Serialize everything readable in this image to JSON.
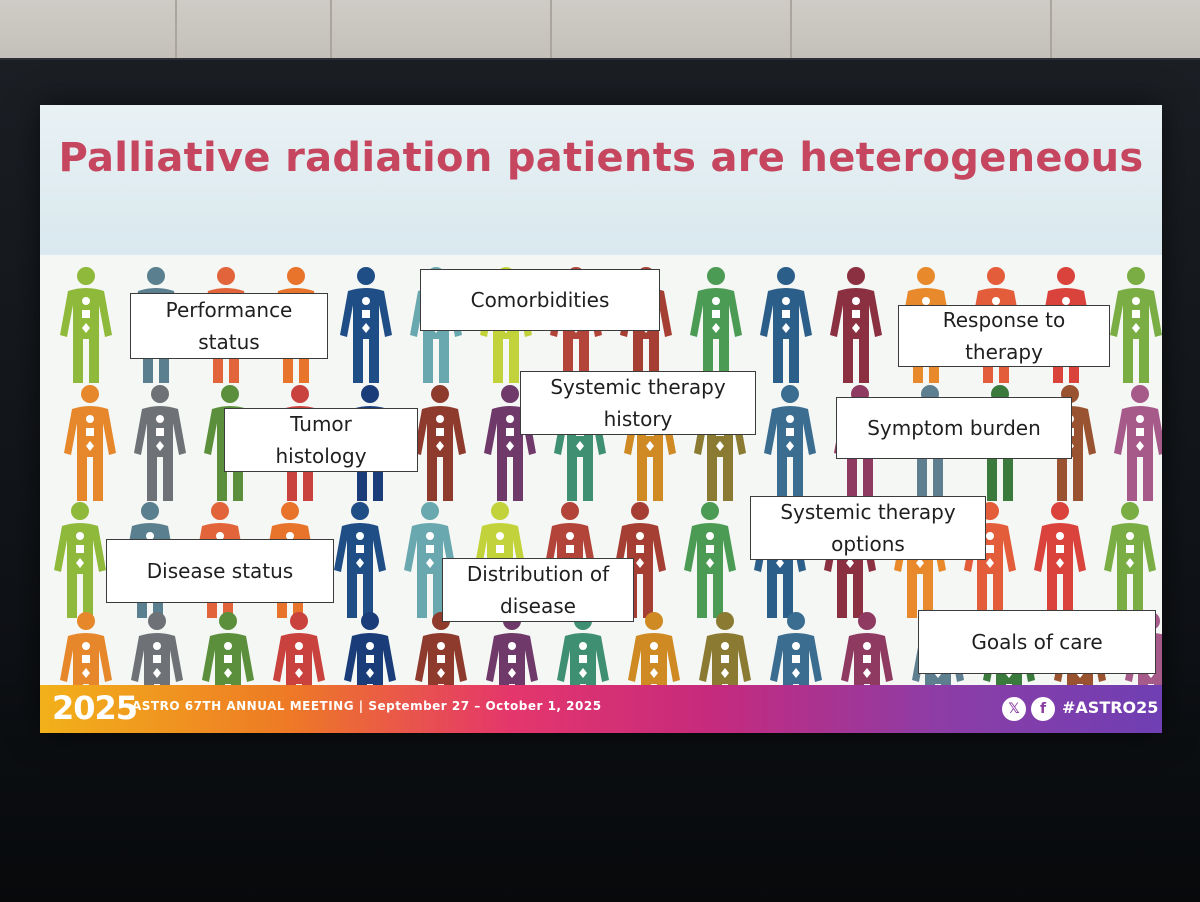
{
  "slide": {
    "title": "Palliative radiation patients are heterogeneous"
  },
  "labels": [
    "Performance\nstatus",
    "Comorbidities",
    "Response to\ntherapy",
    "Systemic therapy\nhistory",
    "Tumor\nhistology",
    "Symptom burden",
    "Systemic therapy\noptions",
    "Disease status",
    "Distribution of\ndisease",
    "Goals of care"
  ],
  "banner": {
    "logo": "2025",
    "meeting": "ASTRO 67TH ANNUAL MEETING  |  September 27 – October 1, 2025",
    "x_icon": "𝕏",
    "facebook_icon": "f",
    "hashtag": "#ASTRO25"
  },
  "figure_colors": [
    "#8fb93a",
    "#5a7f8f",
    "#e2643a",
    "#e8742c",
    "#1f4d86",
    "#6aa8b0",
    "#c2d23a",
    "#b3443a",
    "#a53f34",
    "#4c9b54",
    "#2b5f89",
    "#8b3040",
    "#e88a2c",
    "#e35d3a",
    "#d9433c",
    "#7aae45",
    "#e6872c",
    "#6e7276",
    "#5b8f3c",
    "#c9423e",
    "#1a3d7a",
    "#8e3b2e",
    "#6f3a6a",
    "#3f8f73",
    "#cf8a24",
    "#8a7a32",
    "#3a6d8f",
    "#8f3a60",
    "#5d7f90",
    "#3b7a3d",
    "#9a5330",
    "#a65a8a"
  ],
  "icon_names": [
    "person-figure",
    "x-icon",
    "facebook-icon"
  ]
}
